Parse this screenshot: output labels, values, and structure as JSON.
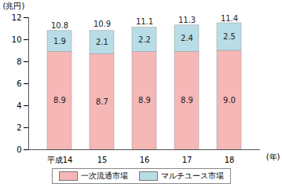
{
  "chart_data": {
    "type": "bar",
    "stacked": true,
    "data_labels": true,
    "grid": false,
    "legend": "bottom",
    "x_label": "(年)",
    "y_label": "(兆円)",
    "categories": [
      "平成14",
      "15",
      "16",
      "17",
      "18"
    ],
    "series": [
      {
        "name": "一次流通市場",
        "color": "#f6b7b7",
        "values": [
          8.9,
          8.7,
          8.9,
          8.9,
          9.0
        ]
      },
      {
        "name": "マルチユース市場",
        "color": "#b9dde6",
        "values": [
          1.9,
          2.1,
          2.2,
          2.4,
          2.5
        ]
      }
    ],
    "totals": [
      10.8,
      10.9,
      11.1,
      11.3,
      11.4
    ],
    "ylim": [
      0,
      12
    ],
    "yticks": [
      0,
      2,
      4,
      6,
      8,
      10,
      12
    ]
  }
}
